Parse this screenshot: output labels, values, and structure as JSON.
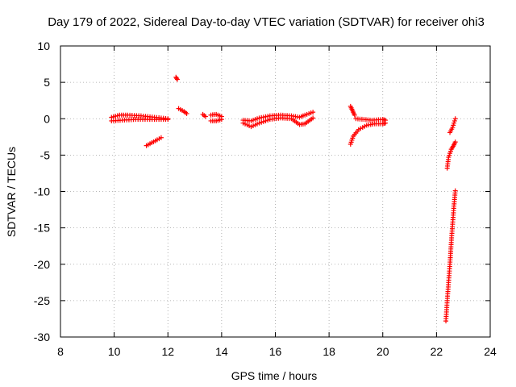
{
  "chart_data": {
    "type": "scatter",
    "title": "Day 179 of 2022, Sidereal Day-to-day VTEC variation (SDTVAR) for receiver ohi3",
    "xlabel": "GPS time / hours",
    "ylabel": "SDTVAR / TECUs",
    "xlim": [
      8,
      24
    ],
    "ylim": [
      -30,
      10
    ],
    "xticks": [
      8,
      10,
      12,
      14,
      16,
      18,
      20,
      22,
      24
    ],
    "yticks": [
      -30,
      -25,
      -20,
      -15,
      -10,
      -5,
      0,
      5,
      10
    ],
    "grid": true,
    "marker": "+",
    "color": "#ff0000",
    "series": [
      {
        "name": "SDTVAR",
        "segments": [
          {
            "x": [
              9.9,
              10.2,
              10.5,
              11.0,
              11.5,
              12.0
            ],
            "y": [
              0.2,
              0.5,
              0.5,
              0.4,
              0.2,
              0.0
            ]
          },
          {
            "x": [
              9.9,
              10.3,
              10.8,
              11.5,
              12.0
            ],
            "y": [
              -0.3,
              -0.2,
              -0.1,
              -0.1,
              -0.1
            ]
          },
          {
            "x": [
              11.2,
              11.4,
              11.6,
              11.75
            ],
            "y": [
              -3.7,
              -3.3,
              -2.9,
              -2.6
            ]
          },
          {
            "x": [
              12.3,
              12.35
            ],
            "y": [
              5.7,
              5.4
            ]
          },
          {
            "x": [
              12.4,
              12.6,
              12.7
            ],
            "y": [
              1.4,
              1.0,
              0.7
            ]
          },
          {
            "x": [
              13.3,
              13.4
            ],
            "y": [
              0.6,
              0.3
            ]
          },
          {
            "x": [
              13.6,
              13.8,
              14.0
            ],
            "y": [
              0.5,
              0.6,
              0.3
            ]
          },
          {
            "x": [
              13.6,
              13.8,
              14.0
            ],
            "y": [
              -0.3,
              -0.3,
              -0.1
            ]
          },
          {
            "x": [
              14.8,
              15.1,
              15.4,
              15.8,
              16.2,
              16.6,
              16.9,
              17.1,
              17.4
            ],
            "y": [
              -0.6,
              -1.1,
              -0.6,
              -0.1,
              0.1,
              0.0,
              -0.8,
              -0.7,
              0.1
            ]
          },
          {
            "x": [
              14.8,
              15.1,
              15.4,
              15.8,
              16.2,
              16.6,
              16.9,
              17.1,
              17.4
            ],
            "y": [
              -0.2,
              -0.3,
              0.1,
              0.4,
              0.5,
              0.4,
              0.2,
              0.5,
              0.9
            ]
          },
          {
            "x": [
              18.8,
              18.85,
              18.9,
              18.95
            ],
            "y": [
              1.7,
              1.3,
              0.9,
              0.5
            ]
          },
          {
            "x": [
              18.8,
              18.9,
              19.1,
              19.4,
              19.7,
              20.0,
              20.1
            ],
            "y": [
              -3.5,
              -2.4,
              -1.5,
              -0.9,
              -0.7,
              -0.7,
              -0.6
            ]
          },
          {
            "x": [
              19.0,
              19.3,
              19.6,
              20.0,
              20.1
            ],
            "y": [
              0.0,
              -0.1,
              -0.2,
              -0.1,
              -0.2
            ]
          },
          {
            "x": [
              22.5,
              22.6,
              22.65,
              22.7
            ],
            "y": [
              -1.9,
              -1.2,
              -0.6,
              0.0
            ]
          },
          {
            "x": [
              22.4,
              22.45,
              22.55,
              22.65,
              22.7
            ],
            "y": [
              -6.8,
              -5.3,
              -4.2,
              -3.6,
              -3.2
            ]
          },
          {
            "x": [
              22.35,
              22.4,
              22.45,
              22.5,
              22.55,
              22.6,
              22.65,
              22.7
            ],
            "y": [
              -27.8,
              -25.0,
              -22.5,
              -20.0,
              -17.0,
              -14.5,
              -12.0,
              -9.9
            ]
          }
        ]
      }
    ]
  }
}
